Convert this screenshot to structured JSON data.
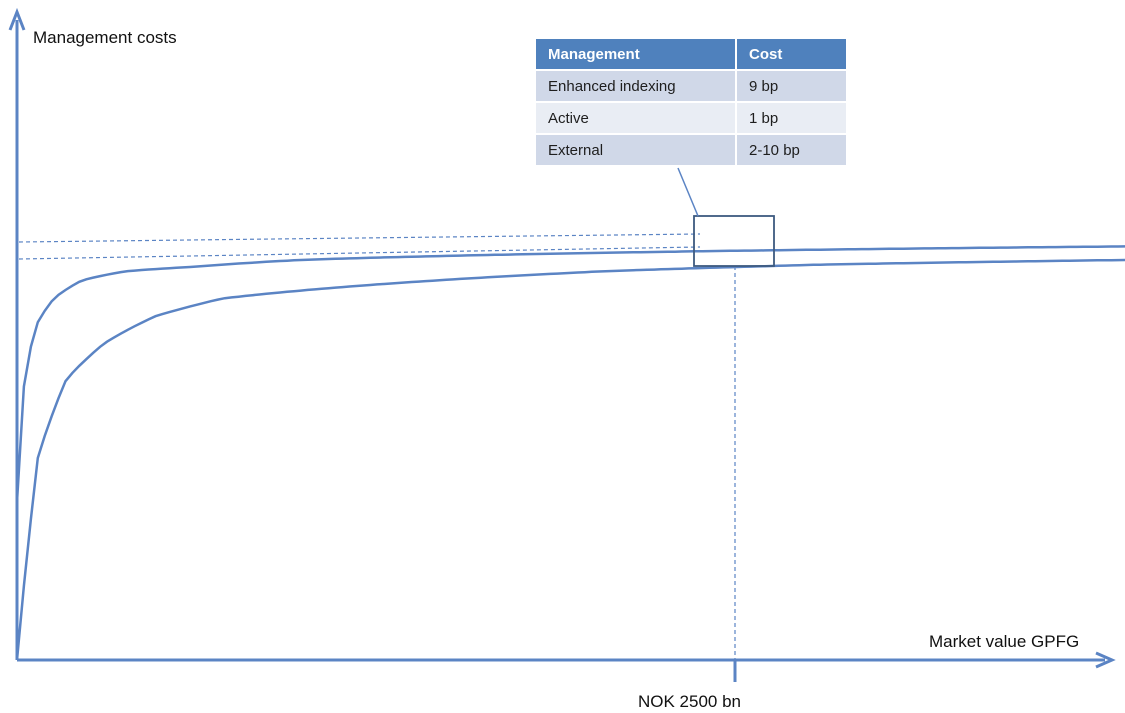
{
  "chart_data": {
    "type": "line",
    "xlabel": "Market value GPFG",
    "ylabel": "Management costs",
    "x_marker": "NOK 2500 bn",
    "series": [
      {
        "values": [
          0.35,
          0.62,
          0.74,
          0.8,
          0.84,
          0.86,
          0.87,
          0.885,
          0.895,
          0.905,
          0.915
        ]
      },
      {
        "values": [
          0.0,
          0.45,
          0.62,
          0.7,
          0.76,
          0.8,
          0.82,
          0.84,
          0.86,
          0.875,
          0.885
        ]
      }
    ],
    "grid": false,
    "table": {
      "headers": [
        "Management",
        "Cost"
      ],
      "rows": [
        [
          "Enhanced indexing",
          "9 bp"
        ],
        [
          "Active",
          "1 bp"
        ],
        [
          "External",
          "2-10 bp"
        ]
      ]
    }
  }
}
